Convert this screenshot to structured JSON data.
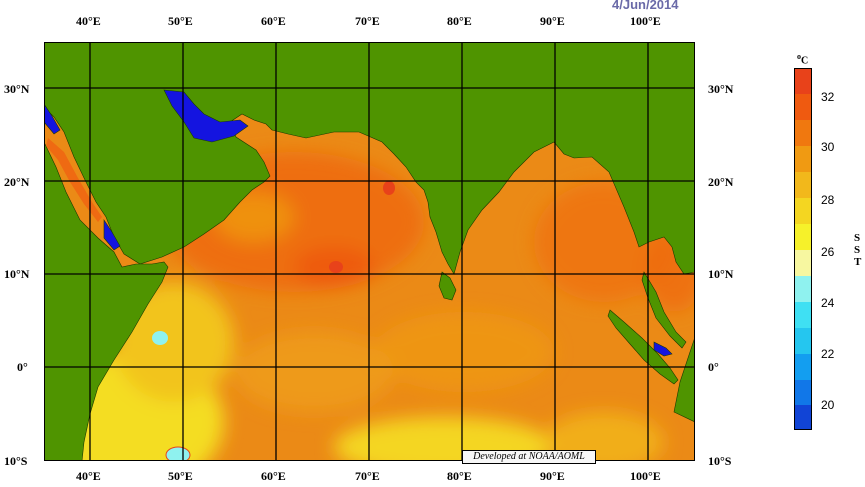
{
  "header": {
    "date": "4/Jun/2014"
  },
  "axes": {
    "top": [
      "40°E",
      "50°E",
      "60°E",
      "70°E",
      "80°E",
      "90°E",
      "100°E"
    ],
    "bottom": [
      "40°E",
      "50°E",
      "60°E",
      "70°E",
      "80°E",
      "90°E",
      "100°E"
    ],
    "left": [
      "30°N",
      "20°N",
      "10°N",
      "0°",
      "10°S"
    ],
    "right": [
      "30°N",
      "20°N",
      "10°N",
      "0°",
      "10°S"
    ]
  },
  "credit": "Developed at NOAA/AOML",
  "colorbar": {
    "unit_o": "o",
    "unit_c": "C",
    "vertical_label": [
      "S",
      "S",
      "T"
    ],
    "ticks": [
      "32",
      "30",
      "28",
      "26",
      "24",
      "22",
      "20"
    ],
    "colors": {
      "c33": "#e8421a",
      "c32": "#ef5a10",
      "c31": "#f0780f",
      "c30": "#f09a12",
      "c29": "#f2b81b",
      "c28": "#f4d621",
      "c27": "#f6f12a",
      "c26": "#f7f7a0",
      "c25": "#8ff2ef",
      "c24": "#3fe0f3",
      "c23": "#25c6ef",
      "c22": "#139ef0",
      "c21": "#1177e8",
      "c20": "#1144d6",
      "land": "#4f9400",
      "cold": "#1414e0"
    }
  }
}
